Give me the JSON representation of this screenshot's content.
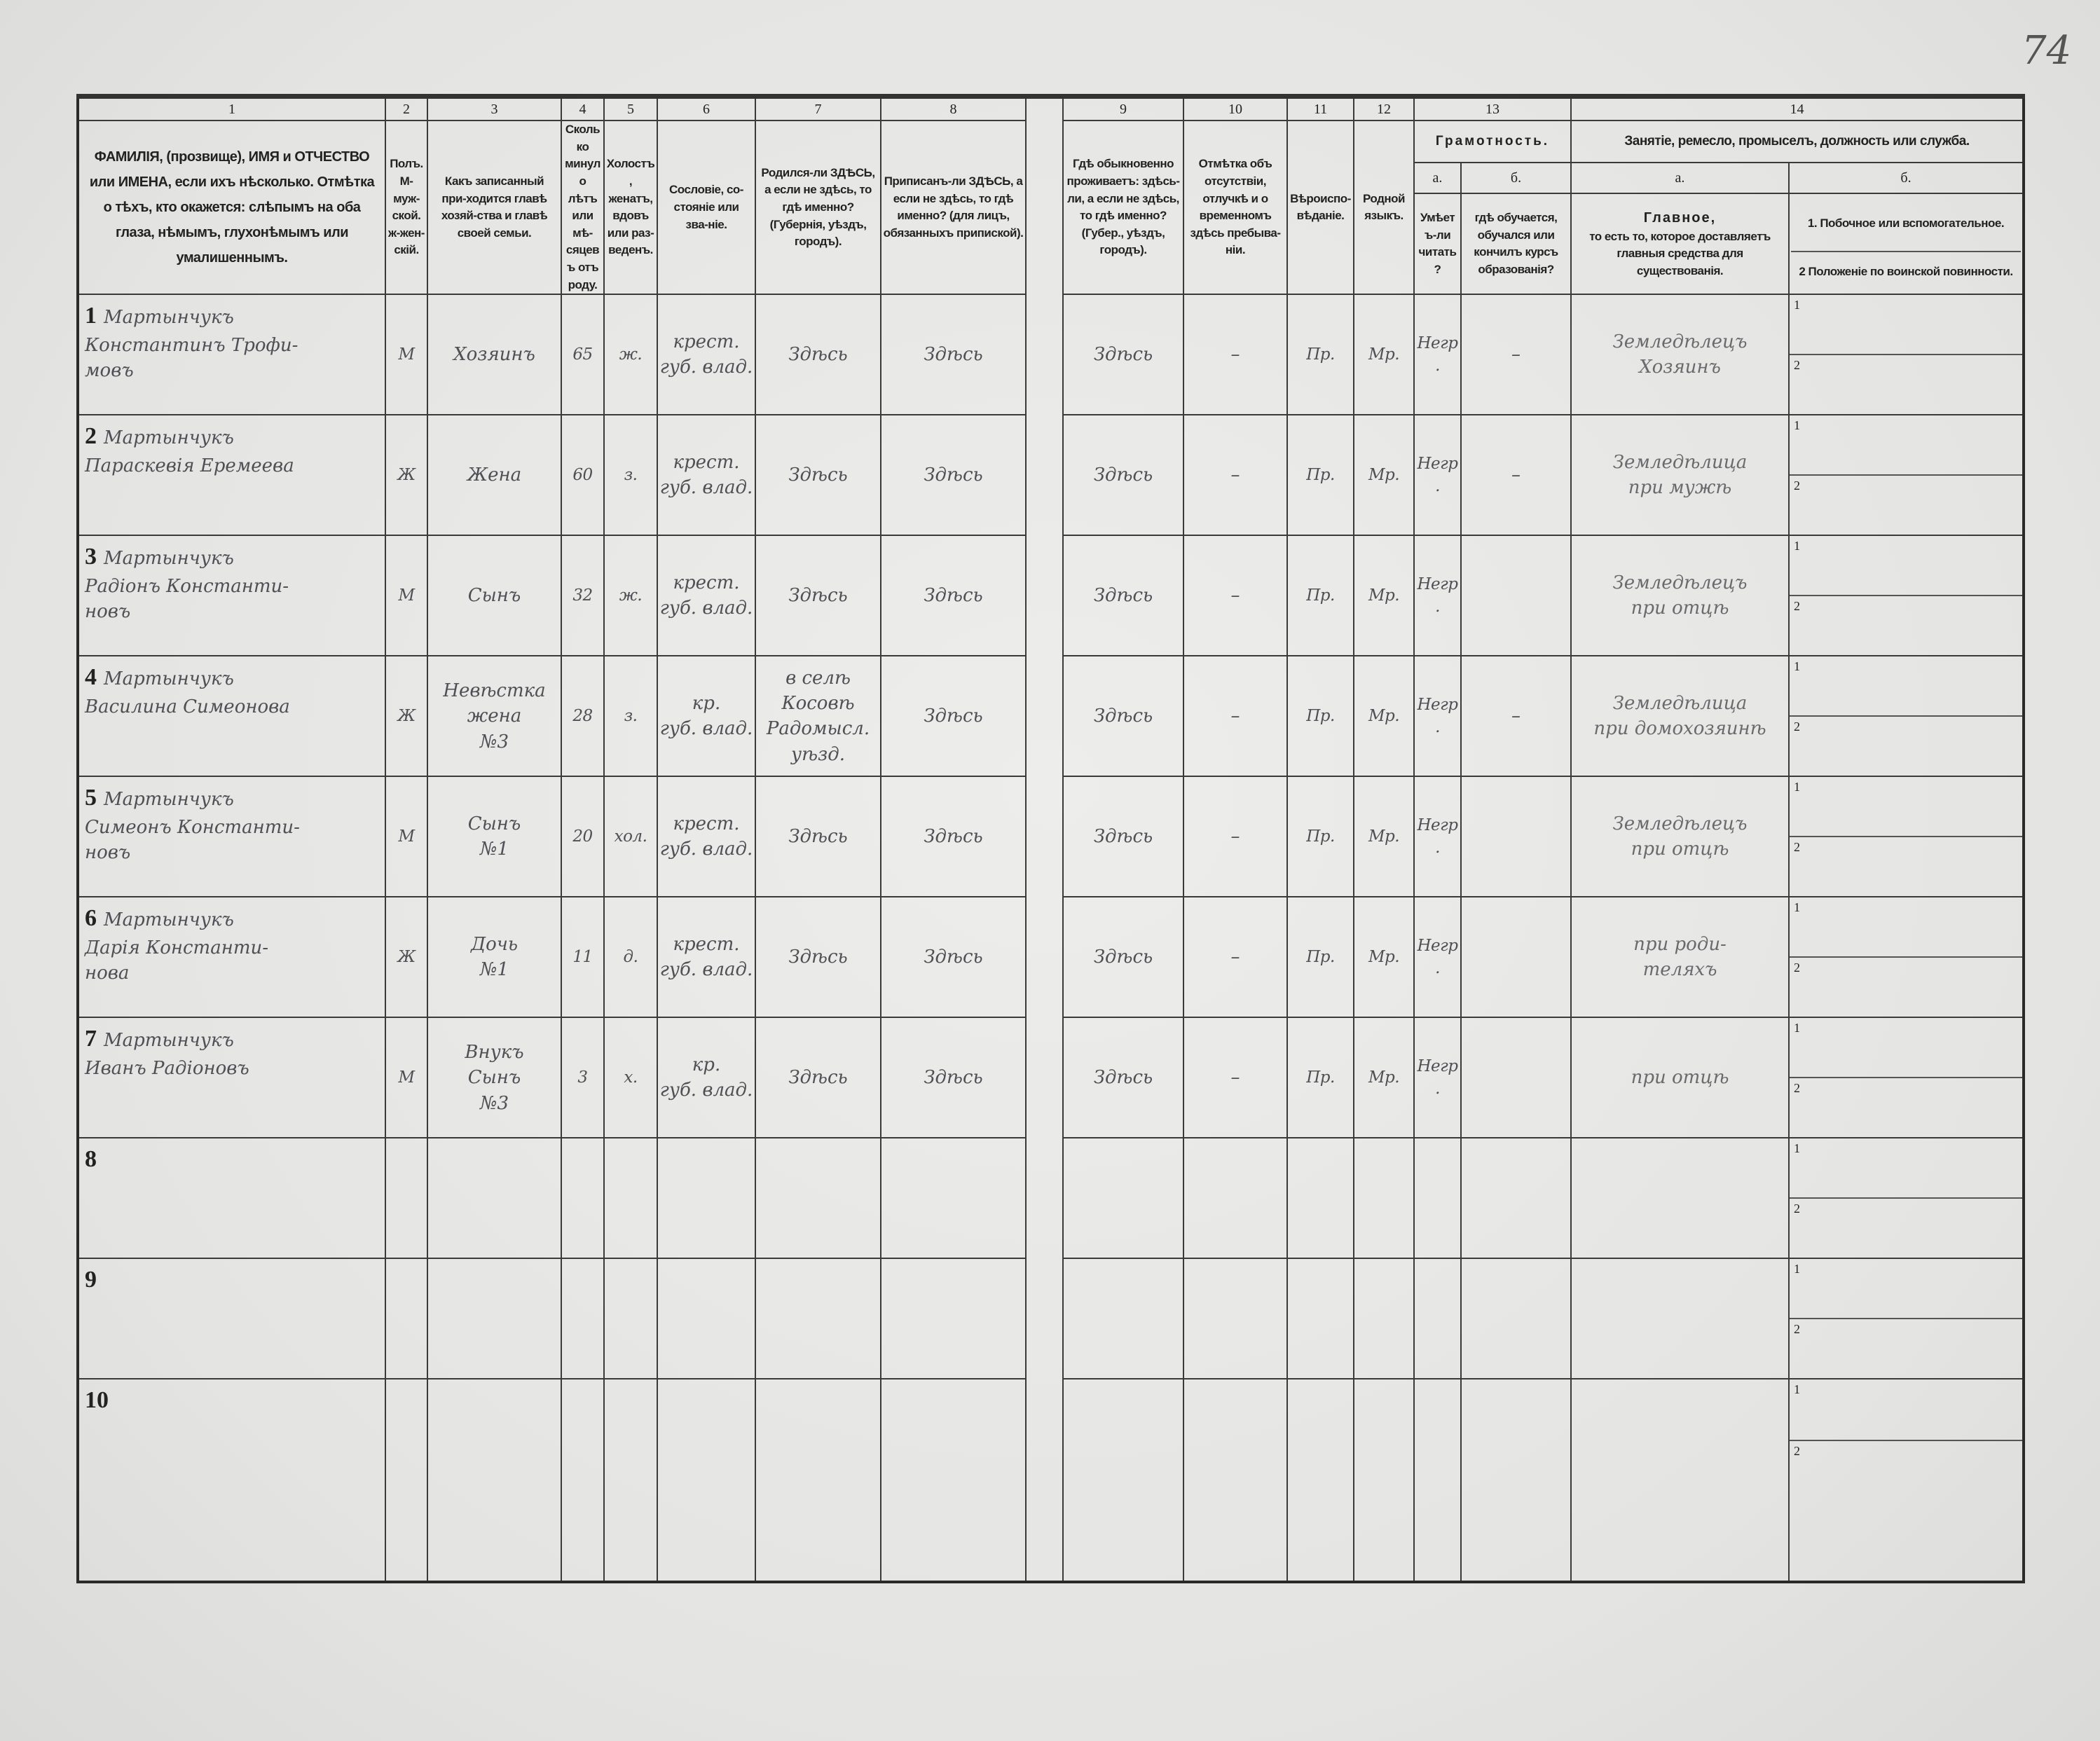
{
  "page_number": "74",
  "header": {
    "col_numbers": [
      "1",
      "2",
      "3",
      "4",
      "5",
      "6",
      "7",
      "8",
      "9",
      "10",
      "11",
      "12",
      "13",
      "14"
    ],
    "c1": "ФАМИЛІЯ, (прозвище), ИМЯ и ОТЧЕСТВО или ИМЕНА, если ихъ нѣсколько. Отмѣтка о тѣхъ, кто окажется: слѣпымъ на оба глаза, нѣмымъ, глухонѣмымъ или умалишеннымъ.",
    "c2": "Полъ. М-муж-ской. ж-жен-скій.",
    "c3": "Какъ записанный при-ходится главѣ хозяй-ства и главѣ своей семьи.",
    "c4": "Сколько минуло лѣтъ или мѣ-сяцевъ отъ роду.",
    "c5": "Холостъ, женатъ, вдовъ или раз-веденъ.",
    "c6": "Сословіе, со-стояніе или зва-ніе.",
    "c7": "Родился-ли ЗДѢСЬ, а если не здѣсь, то гдѣ именно? (Губернія, уѣздъ, городъ).",
    "c8": "Приписанъ-ли ЗДѢСЬ, а если не здѣсь, то гдѣ именно? (для лицъ, обязанныхъ припиской).",
    "c9": "Гдѣ обыкновенно проживаетъ: здѣсь-ли, а если не здѣсь, то гдѣ именно? (Губер., уѣздъ, городъ).",
    "c10": "Отмѣтка объ отсутствіи, отлучкѣ и о временномъ здѣсь пребыва-ніи.",
    "c11": "Вѣроиспо-вѣданіе.",
    "c12": "Родной языкъ.",
    "c13_title": "Грамотность.",
    "c13a_letter": "а.",
    "c13a": "Умѣетъ-ли читать?",
    "c13b_letter": "б.",
    "c13b": "гдѣ обучается, обучался или кончилъ курсъ образованія?",
    "c14_title": "Занятіе, ремесло, промыселъ, должность или служба.",
    "c14a_letter": "а.",
    "c14a_title": "Главное,",
    "c14a": "то есть то, которое доставляетъ главныя средства для существованія.",
    "c14b_letter": "б.",
    "c14b_1": "1. Побочное или вспомогательное.",
    "c14b_2": "2 Положеніе по воинской повинности."
  },
  "sub_labels": [
    "1",
    "2"
  ],
  "rows": [
    {
      "num": "1",
      "name": "Мартынчукъ\nКонстантинъ Трофи-\nмовъ",
      "sex": "М",
      "relation": "Хозяинъ",
      "age": "65",
      "marital": "ж.",
      "estate": "крест.\nгуб. влад.",
      "born": "Здѣсь",
      "registered": "Здѣсь",
      "residence": "Здѣсь",
      "absence": "–",
      "religion": "Пр.",
      "language": "Мр.",
      "reads": "Негр.",
      "school": "–",
      "occupation": "Земледѣлецъ\nХозяинъ"
    },
    {
      "num": "2",
      "name": "Мартынчукъ\nПараскевія Еремеева",
      "sex": "Ж",
      "relation": "Жена",
      "age": "60",
      "marital": "з.",
      "estate": "крест.\nгуб. влад.",
      "born": "Здѣсь",
      "registered": "Здѣсь",
      "residence": "Здѣсь",
      "absence": "–",
      "religion": "Пр.",
      "language": "Мр.",
      "reads": "Негр.",
      "school": "–",
      "occupation": "Земледѣлица\nпри мужѣ"
    },
    {
      "num": "3",
      "name": "Мартынчукъ\nРадіонъ Константи-\nновъ",
      "sex": "М",
      "relation": "Сынъ",
      "age": "32",
      "marital": "ж.",
      "estate": "крест.\nгуб. влад.",
      "born": "Здѣсь",
      "registered": "Здѣсь",
      "residence": "Здѣсь",
      "absence": "–",
      "religion": "Пр.",
      "language": "Мр.",
      "reads": "Негр.",
      "school": "",
      "occupation": "Земледѣлецъ\nпри отцѣ"
    },
    {
      "num": "4",
      "name": "Мартынчукъ\nВасилина Симеонова",
      "sex": "Ж",
      "relation": "Невѣстка\nжена\n№3",
      "age": "28",
      "marital": "з.",
      "estate": "кр.\nгуб. влад.",
      "born": "в селѣ\nКосовѣ\nРадомысл.\nуѣзд.",
      "registered": "Здѣсь",
      "residence": "Здѣсь",
      "absence": "–",
      "religion": "Пр.",
      "language": "Мр.",
      "reads": "Негр.",
      "school": "–",
      "occupation": "Земледѣлица\nпри домохозяинѣ"
    },
    {
      "num": "5",
      "name": "Мартынчукъ\nСимеонъ Константи-\nновъ",
      "sex": "М",
      "relation": "Сынъ\n№1",
      "age": "20",
      "marital": "хол.",
      "estate": "крест.\nгуб. влад.",
      "born": "Здѣсь",
      "registered": "Здѣсь",
      "residence": "Здѣсь",
      "absence": "–",
      "religion": "Пр.",
      "language": "Мр.",
      "reads": "Негр.",
      "school": "",
      "occupation": "Земледѣлецъ\nпри отцѣ"
    },
    {
      "num": "6",
      "name": "Мартынчукъ\nДарія Константи-\nнова",
      "sex": "Ж",
      "relation": "Дочь\n№1",
      "age": "11",
      "marital": "д.",
      "estate": "крест.\nгуб. влад.",
      "born": "Здѣсь",
      "registered": "Здѣсь",
      "residence": "Здѣсь",
      "absence": "–",
      "religion": "Пр.",
      "language": "Мр.",
      "reads": "Негр.",
      "school": "",
      "occupation": "при роди-\nтеляхъ"
    },
    {
      "num": "7",
      "name": "Мартынчукъ\nИванъ Радіоновъ",
      "sex": "М",
      "relation": "Внукъ\nСынъ\n№3",
      "age": "3",
      "marital": "х.",
      "estate": "кр.\nгуб. влад.",
      "born": "Здѣсь",
      "registered": "Здѣсь",
      "residence": "Здѣсь",
      "absence": "–",
      "religion": "Пр.",
      "language": "Мр.",
      "reads": "Негр.",
      "school": "",
      "occupation": "при отцѣ"
    },
    {
      "num": "8"
    },
    {
      "num": "9"
    },
    {
      "num": "10"
    }
  ]
}
